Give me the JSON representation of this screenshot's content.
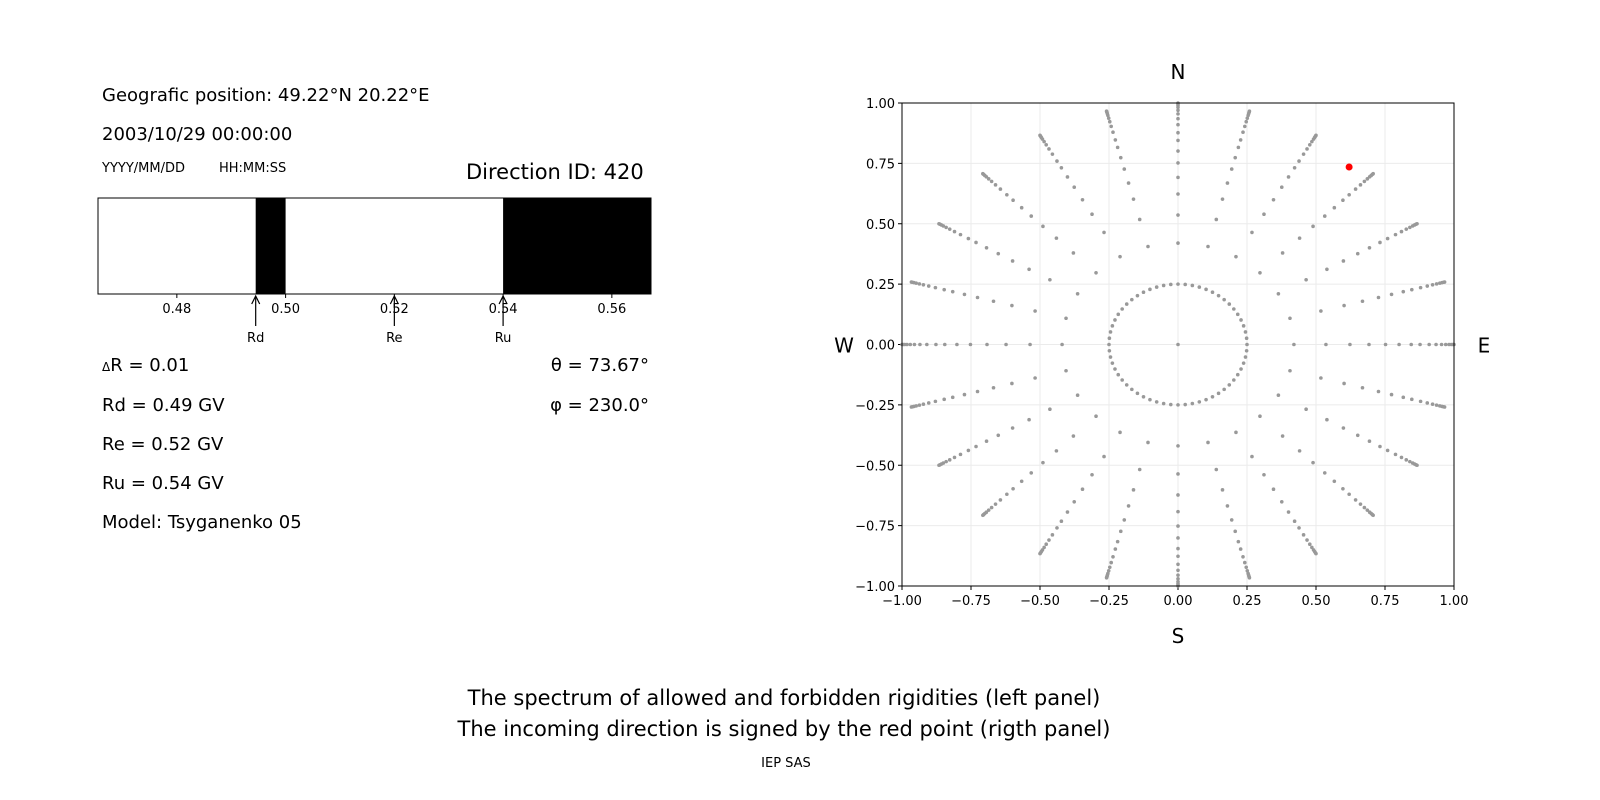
{
  "left_panel": {
    "position_text": "Geografic position: 49.22°N 20.22°E",
    "datetime_text": "2003/10/29 00:00:00",
    "date_format_label": "YYYY/MM/DD",
    "time_format_label": "HH:MM:SS",
    "direction_id_text": "Direction ID: 420",
    "delta_r_symbol": "Δ",
    "delta_r_text": "R = 0.01",
    "rd_text": "Rd = 0.49 GV",
    "re_text": "Re = 0.52 GV",
    "ru_text": "Ru = 0.54 GV",
    "model_text": "Model: Tsyganenko 05",
    "theta_text": "θ = 73.67°",
    "phi_text": "φ = 230.0°"
  },
  "chart_data": [
    {
      "type": "bar",
      "subtype": "rigidity-spectrum",
      "xlim": [
        0.4655,
        0.5672
      ],
      "xticks": [
        "0.48",
        "0.50",
        "0.52",
        "0.54",
        "0.56"
      ],
      "xtick_values": [
        0.48,
        0.5,
        0.52,
        0.54,
        0.56
      ],
      "forbidden_intervals": [
        [
          0.4945,
          0.5
        ],
        [
          0.54,
          0.5672
        ]
      ],
      "allowed_color": "#ffffff",
      "forbidden_color": "#000000",
      "markers": [
        {
          "label": "Rd",
          "value": 0.4945
        },
        {
          "label": "Re",
          "value": 0.52
        },
        {
          "label": "Ru",
          "value": 0.54
        }
      ]
    },
    {
      "type": "scatter",
      "xlim": [
        -1,
        1
      ],
      "ylim": [
        -1,
        1
      ],
      "xticks": [
        "−1.00",
        "−0.75",
        "−0.50",
        "−0.25",
        "0.00",
        "0.25",
        "0.50",
        "0.75",
        "1.00"
      ],
      "yticks": [
        "−1.00",
        "−0.75",
        "−0.50",
        "−0.25",
        "0.00",
        "0.25",
        "0.50",
        "0.75",
        "1.00"
      ],
      "tick_values": [
        -1,
        -0.75,
        -0.5,
        -0.25,
        0,
        0.25,
        0.5,
        0.75,
        1
      ],
      "grid": true,
      "compass": {
        "north": "N",
        "south": "S",
        "west": "W",
        "east": "E"
      },
      "grid_points": {
        "color": "#999999",
        "azimuth_step_deg": 15,
        "ray_radii": [
          0.42,
          0.536,
          0.623,
          0.692,
          0.752,
          0.801,
          0.845,
          0.877,
          0.91,
          0.935,
          0.955,
          0.97,
          0.982,
          0.99,
          0.996,
          1.0
        ],
        "ring_radius": 0.25,
        "ring_count": 60,
        "center": [
          0,
          0
        ]
      },
      "highlight_point": {
        "x": 0.62,
        "y": 0.735,
        "color": "#ff0000"
      }
    }
  ],
  "footer": {
    "line1": "The spectrum of allowed and forbidden rigidities (left panel)",
    "line2": "The incoming direction is signed by the red point (rigth panel)",
    "credit": "IEP SAS"
  }
}
